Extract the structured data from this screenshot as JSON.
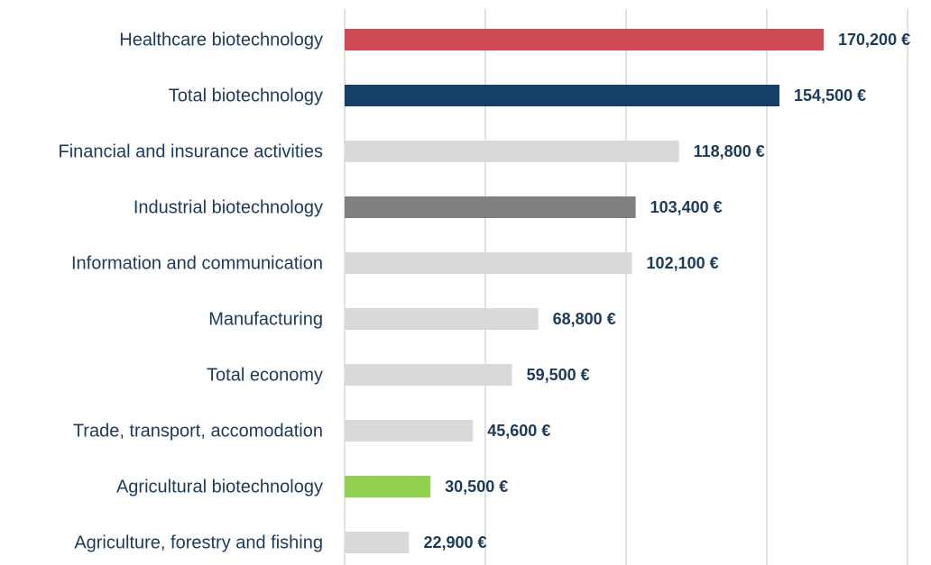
{
  "chart_data": {
    "type": "hbar",
    "categories": [
      "Healthcare biotechnology",
      "Total biotechnology",
      "Financial and insurance activities",
      "Industrial biotechnology",
      "Information and communication",
      "Manufacturing",
      "Total economy",
      "Trade, transport, accomodation",
      "Agricultural biotechnology",
      "Agriculture, forestry and fishing"
    ],
    "values": [
      170200,
      154500,
      118800,
      103400,
      102100,
      68800,
      59500,
      45600,
      30500,
      22900
    ],
    "value_labels": [
      "170,200 €",
      "154,500 €",
      "118,800 €",
      "103,400 €",
      "102,100 €",
      "68,800 €",
      "59,500 €",
      "45,600 €",
      "30,500 €",
      "22,900 €"
    ],
    "colors": [
      "#d04a53",
      "#143f66",
      "#d9d9d9",
      "#7f7f7f",
      "#d9d9d9",
      "#d9d9d9",
      "#d9d9d9",
      "#d9d9d9",
      "#92d050",
      "#d9d9d9"
    ],
    "xlim": [
      0,
      200000
    ],
    "xticks": [
      0,
      50000,
      100000,
      150000,
      200000
    ],
    "grid": true
  }
}
